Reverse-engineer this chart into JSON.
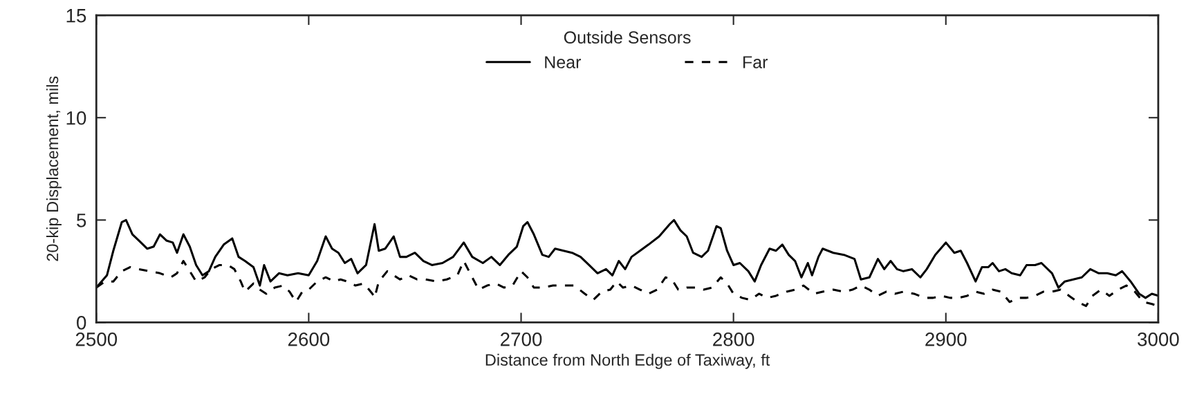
{
  "chart_data": {
    "type": "line",
    "xlabel": "Distance from North Edge of Taxiway, ft",
    "ylabel": "20-kip Displacement, mils",
    "legend_title": "Outside Sensors",
    "legend": "top",
    "grid": false,
    "marker": "none",
    "xlim": [
      2500,
      3000
    ],
    "xticks": [
      2500,
      2600,
      2700,
      2800,
      2900,
      3000
    ],
    "ylim": [
      0,
      15
    ],
    "yticks": [
      0,
      5,
      10,
      15
    ],
    "series": [
      {
        "name": "Near",
        "color": "#000000",
        "line_style": "solid",
        "x": [
          2500,
          2505,
          2508,
          2510,
          2512,
          2514,
          2517,
          2520,
          2524,
          2527,
          2530,
          2533,
          2536,
          2538,
          2541,
          2544,
          2547,
          2550,
          2553,
          2556,
          2560,
          2564,
          2567,
          2570,
          2574,
          2577,
          2579,
          2582,
          2586,
          2590,
          2595,
          2600,
          2604,
          2608,
          2611,
          2614,
          2617,
          2620,
          2623,
          2627,
          2631,
          2633,
          2636,
          2640,
          2643,
          2646,
          2650,
          2654,
          2658,
          2663,
          2668,
          2673,
          2677,
          2682,
          2686,
          2690,
          2694,
          2698,
          2701,
          2703,
          2706,
          2710,
          2713,
          2716,
          2720,
          2724,
          2728,
          2732,
          2736,
          2740,
          2743,
          2746,
          2749,
          2752,
          2756,
          2760,
          2765,
          2770,
          2772,
          2775,
          2778,
          2781,
          2785,
          2788,
          2792,
          2794,
          2797,
          2800,
          2803,
          2807,
          2810,
          2813,
          2817,
          2820,
          2823,
          2826,
          2829,
          2832,
          2835,
          2837,
          2840,
          2842,
          2847,
          2852,
          2857,
          2860,
          2864,
          2868,
          2871,
          2874,
          2877,
          2880,
          2884,
          2888,
          2891,
          2895,
          2900,
          2904,
          2907,
          2910,
          2914,
          2917,
          2920,
          2922,
          2925,
          2928,
          2931,
          2935,
          2938,
          2942,
          2945,
          2950,
          2953,
          2956,
          2960,
          2964,
          2968,
          2972,
          2976,
          2980,
          2983,
          2987,
          2991,
          2994,
          2997,
          3000
        ],
        "values": [
          1.7,
          2.3,
          3.5,
          4.2,
          4.9,
          5.0,
          4.3,
          4.0,
          3.6,
          3.7,
          4.3,
          4.0,
          3.9,
          3.4,
          4.3,
          3.7,
          2.8,
          2.3,
          2.5,
          3.2,
          3.8,
          4.1,
          3.2,
          3.0,
          2.7,
          1.8,
          2.8,
          2.0,
          2.4,
          2.3,
          2.4,
          2.3,
          3.0,
          4.2,
          3.6,
          3.4,
          2.9,
          3.1,
          2.4,
          2.8,
          4.8,
          3.5,
          3.6,
          4.2,
          3.2,
          3.2,
          3.4,
          3.0,
          2.8,
          2.9,
          3.2,
          3.9,
          3.2,
          2.9,
          3.2,
          2.8,
          3.3,
          3.7,
          4.7,
          4.9,
          4.3,
          3.3,
          3.2,
          3.6,
          3.5,
          3.4,
          3.2,
          2.8,
          2.4,
          2.6,
          2.3,
          3.0,
          2.6,
          3.2,
          3.5,
          3.8,
          4.2,
          4.8,
          5.0,
          4.5,
          4.2,
          3.4,
          3.2,
          3.5,
          4.7,
          4.6,
          3.5,
          2.8,
          2.9,
          2.5,
          2.0,
          2.8,
          3.6,
          3.5,
          3.8,
          3.3,
          3.0,
          2.2,
          2.9,
          2.3,
          3.2,
          3.6,
          3.4,
          3.3,
          3.1,
          2.1,
          2.2,
          3.1,
          2.6,
          3.0,
          2.6,
          2.5,
          2.6,
          2.2,
          2.6,
          3.3,
          3.9,
          3.4,
          3.5,
          2.9,
          2.0,
          2.7,
          2.7,
          2.9,
          2.5,
          2.6,
          2.4,
          2.3,
          2.8,
          2.8,
          2.9,
          2.4,
          1.7,
          2.0,
          2.1,
          2.2,
          2.6,
          2.4,
          2.4,
          2.3,
          2.5,
          2.0,
          1.4,
          1.2,
          1.4,
          1.3
        ]
      },
      {
        "name": "Far",
        "color": "#000000",
        "line_style": "dashed",
        "x": [
          2500,
          2504,
          2508,
          2512,
          2516,
          2520,
          2525,
          2530,
          2535,
          2538,
          2541,
          2544,
          2547,
          2551,
          2554,
          2558,
          2562,
          2565,
          2568,
          2570,
          2574,
          2577,
          2580,
          2584,
          2588,
          2591,
          2594,
          2597,
          2600,
          2604,
          2608,
          2612,
          2615,
          2618,
          2622,
          2626,
          2630,
          2631,
          2633,
          2637,
          2640,
          2643,
          2647,
          2651,
          2655,
          2660,
          2665,
          2670,
          2673,
          2676,
          2680,
          2684,
          2688,
          2692,
          2696,
          2700,
          2703,
          2706,
          2710,
          2715,
          2720,
          2725,
          2730,
          2734,
          2738,
          2742,
          2745,
          2748,
          2752,
          2756,
          2760,
          2764,
          2768,
          2771,
          2774,
          2778,
          2782,
          2786,
          2790,
          2794,
          2797,
          2800,
          2804,
          2808,
          2812,
          2816,
          2820,
          2825,
          2829,
          2833,
          2838,
          2842,
          2847,
          2852,
          2856,
          2860,
          2864,
          2868,
          2872,
          2876,
          2880,
          2885,
          2890,
          2894,
          2898,
          2902,
          2906,
          2910,
          2914,
          2918,
          2922,
          2926,
          2930,
          2934,
          2938,
          2942,
          2946,
          2950,
          2954,
          2958,
          2962,
          2966,
          2969,
          2973,
          2977,
          2981,
          2985,
          2989,
          2993,
          2997,
          3000
        ],
        "values": [
          1.7,
          2.0,
          2.0,
          2.5,
          2.7,
          2.6,
          2.5,
          2.4,
          2.2,
          2.4,
          3.0,
          2.5,
          2.0,
          2.2,
          2.6,
          2.8,
          2.8,
          2.6,
          2.0,
          1.5,
          1.9,
          1.6,
          1.4,
          1.7,
          1.8,
          1.5,
          1.0,
          1.5,
          1.6,
          2.0,
          2.2,
          2.0,
          2.1,
          2.0,
          1.8,
          1.9,
          1.4,
          1.2,
          2.0,
          2.5,
          2.3,
          2.1,
          2.3,
          2.1,
          2.1,
          2.0,
          2.1,
          2.3,
          3.0,
          2.4,
          1.6,
          1.8,
          1.9,
          1.7,
          1.8,
          2.5,
          2.2,
          1.7,
          1.7,
          1.8,
          1.8,
          1.8,
          1.4,
          1.1,
          1.5,
          1.6,
          2.0,
          1.7,
          1.8,
          1.6,
          1.4,
          1.6,
          2.2,
          2.1,
          1.6,
          1.7,
          1.7,
          1.6,
          1.7,
          2.2,
          1.9,
          1.4,
          1.2,
          1.1,
          1.4,
          1.2,
          1.3,
          1.5,
          1.6,
          1.8,
          1.4,
          1.5,
          1.6,
          1.5,
          1.6,
          1.8,
          1.6,
          1.3,
          1.5,
          1.4,
          1.5,
          1.4,
          1.2,
          1.2,
          1.3,
          1.2,
          1.2,
          1.3,
          1.5,
          1.4,
          1.6,
          1.5,
          1.0,
          1.2,
          1.2,
          1.3,
          1.5,
          1.5,
          1.6,
          1.3,
          1.0,
          0.8,
          1.3,
          1.6,
          1.3,
          1.6,
          1.8,
          1.5,
          1.0,
          0.9,
          0.8
        ]
      }
    ]
  }
}
